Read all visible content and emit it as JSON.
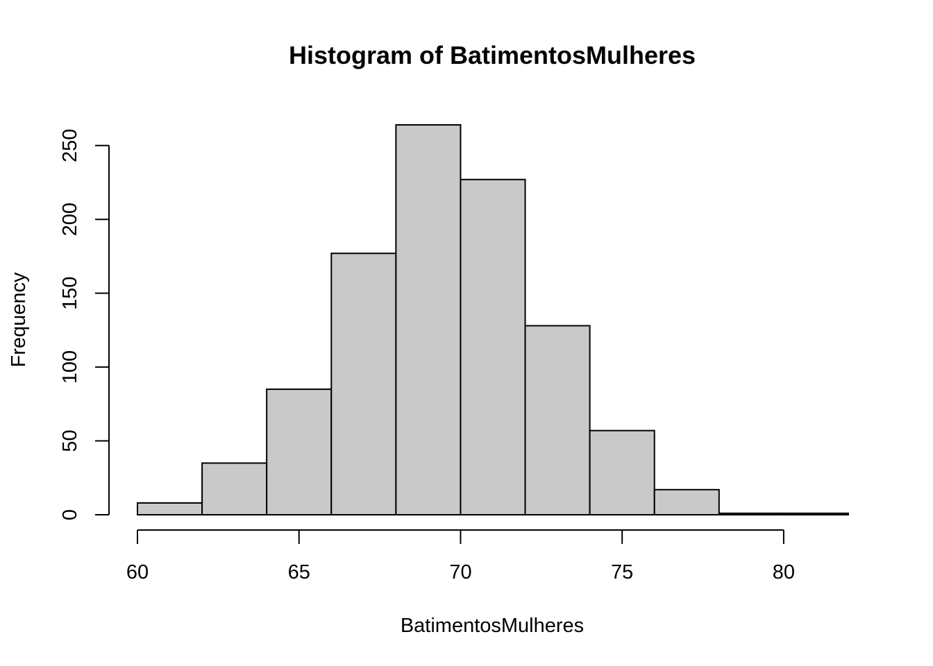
{
  "chart_data": {
    "type": "bar",
    "title": "Histogram of BatimentosMulheres",
    "xlabel": "BatimentosMulheres",
    "ylabel": "Frequency",
    "bins": [
      {
        "start": 60,
        "end": 62,
        "count": 8
      },
      {
        "start": 62,
        "end": 64,
        "count": 35
      },
      {
        "start": 64,
        "end": 66,
        "count": 85
      },
      {
        "start": 66,
        "end": 68,
        "count": 177
      },
      {
        "start": 68,
        "end": 70,
        "count": 264
      },
      {
        "start": 70,
        "end": 72,
        "count": 227
      },
      {
        "start": 72,
        "end": 74,
        "count": 128
      },
      {
        "start": 74,
        "end": 76,
        "count": 57
      },
      {
        "start": 76,
        "end": 78,
        "count": 17
      },
      {
        "start": 78,
        "end": 80,
        "count": 1
      },
      {
        "start": 80,
        "end": 82,
        "count": 1
      }
    ],
    "x_ticks": [
      60,
      65,
      70,
      75,
      80
    ],
    "y_ticks": [
      0,
      50,
      100,
      150,
      200,
      250
    ],
    "xlim": [
      60,
      82
    ],
    "ylim": [
      0,
      264
    ],
    "grid": false,
    "legend": "none",
    "bar_color": "#c9c9c9"
  }
}
